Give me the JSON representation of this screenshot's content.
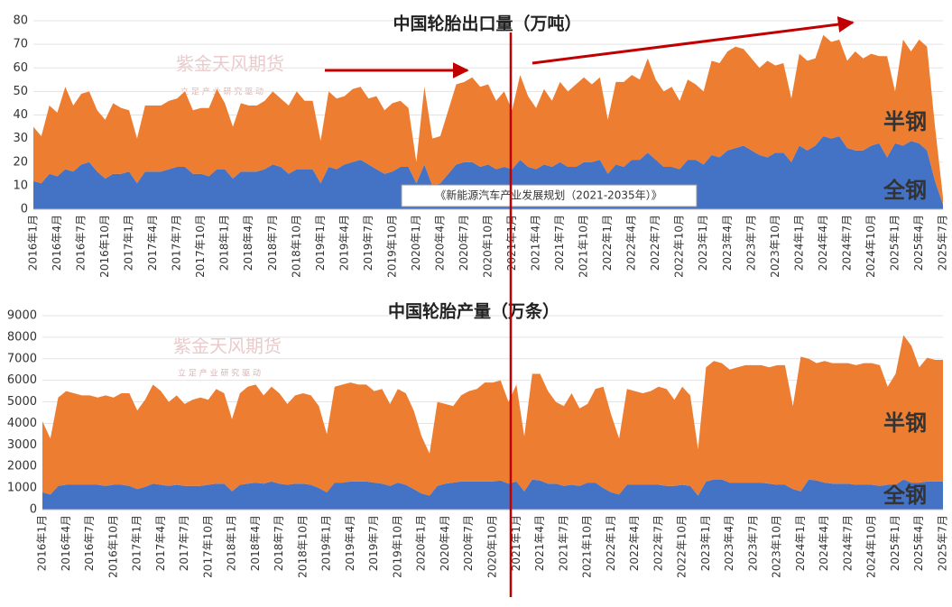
{
  "watermark": {
    "name": "紫金天风期货",
    "slogan": "立 足 产 业 研 究 驱 动"
  },
  "chart_data": [
    {
      "type": "stacked_area",
      "title": "中国轮胎出口量（万吨）",
      "annotation": "《新能源汽车产业发展规划（2021-2035年）》",
      "categories": [
        "2016年1月",
        null,
        null,
        "2016年4月",
        null,
        null,
        "2016年7月",
        null,
        null,
        "2016年10月",
        null,
        null,
        "2017年1月",
        null,
        null,
        "2017年4月",
        null,
        null,
        "2017年7月",
        null,
        null,
        "2017年10月",
        null,
        null,
        "2018年1月",
        null,
        null,
        "2018年4月",
        null,
        null,
        "2018年7月",
        null,
        null,
        "2018年10月",
        null,
        null,
        "2019年1月",
        null,
        null,
        "2019年4月",
        null,
        null,
        "2019年7月",
        null,
        null,
        "2019年10月",
        null,
        null,
        "2020年1月",
        null,
        null,
        "2020年4月",
        null,
        null,
        "2020年7月",
        null,
        null,
        "2020年10月",
        null,
        null,
        "2021年1月",
        null,
        null,
        "2021年4月",
        null,
        null,
        "2021年7月",
        null,
        null,
        "2021年10月",
        null,
        null,
        "2022年1月",
        null,
        null,
        "2022年4月",
        null,
        null,
        "2022年7月",
        null,
        null,
        "2022年10月",
        null,
        null,
        "2023年1月",
        null,
        null,
        "2023年4月",
        null,
        null,
        "2023年7月",
        null,
        null,
        "2023年10月",
        null,
        null,
        "2024年1月",
        null,
        null,
        "2024年4月",
        null,
        null,
        "2024年7月",
        null,
        null,
        "2024年10月",
        null,
        null,
        "2025年1月",
        null,
        null,
        "2025年4月",
        null,
        null,
        "2025年7月"
      ],
      "series": [
        {
          "name": "全钢",
          "color": "#4472c4",
          "values": [
            12,
            11,
            15,
            14,
            17,
            16,
            19,
            20,
            16,
            13,
            15,
            15,
            16,
            11,
            16,
            16,
            16,
            17,
            18,
            18,
            15,
            15,
            14,
            17,
            17,
            13,
            16,
            16,
            16,
            17,
            19,
            18,
            15,
            17,
            17,
            17,
            11,
            18,
            17,
            19,
            20,
            21,
            19,
            17,
            15,
            16,
            18,
            18,
            11,
            19,
            10,
            11,
            15,
            19,
            20,
            20,
            18,
            19,
            17,
            18,
            17,
            21,
            18,
            17,
            19,
            18,
            20,
            18,
            18,
            20,
            20,
            21,
            15,
            19,
            18,
            21,
            21,
            24,
            21,
            18,
            18,
            17,
            21,
            21,
            19,
            23,
            22,
            25,
            26,
            27,
            25,
            23,
            22,
            24,
            24,
            20,
            27,
            25,
            27,
            31,
            30,
            31,
            26,
            25,
            25,
            27,
            28,
            22,
            28,
            27,
            29,
            28,
            25,
            12,
            2
          ]
        },
        {
          "name": "半钢",
          "color": "#ed7d31",
          "values": [
            23,
            20,
            29,
            27,
            35,
            28,
            30,
            30,
            26,
            25,
            30,
            28,
            26,
            19,
            28,
            28,
            28,
            29,
            29,
            32,
            27,
            28,
            29,
            34,
            28,
            22,
            29,
            28,
            28,
            29,
            31,
            29,
            29,
            33,
            29,
            29,
            18,
            32,
            30,
            29,
            31,
            31,
            28,
            31,
            27,
            29,
            28,
            25,
            9,
            33,
            20,
            20,
            27,
            34,
            34,
            36,
            34,
            34,
            29,
            32,
            25,
            36,
            30,
            26,
            32,
            28,
            34,
            32,
            35,
            36,
            33,
            35,
            23,
            35,
            36,
            36,
            34,
            40,
            34,
            32,
            34,
            29,
            34,
            32,
            31,
            40,
            40,
            42,
            43,
            41,
            39,
            37,
            41,
            37,
            38,
            27,
            39,
            38,
            37,
            43,
            41,
            41,
            37,
            42,
            39,
            39,
            37,
            43,
            22,
            45,
            38,
            44,
            44,
            23,
            3
          ]
        }
      ],
      "ylim": [
        0,
        80
      ],
      "yticks": [
        0,
        10,
        20,
        30,
        40,
        50,
        60,
        70,
        80
      ],
      "grid": true
    },
    {
      "type": "stacked_area",
      "title": "中国轮胎产量（万条）",
      "categories": [
        "2016年1月",
        null,
        null,
        "2016年4月",
        null,
        null,
        "2016年7月",
        null,
        null,
        "2016年10月",
        null,
        null,
        "2017年1月",
        null,
        null,
        "2017年4月",
        null,
        null,
        "2017年7月",
        null,
        null,
        "2017年10月",
        null,
        null,
        "2018年1月",
        null,
        null,
        "2018年4月",
        null,
        null,
        "2018年7月",
        null,
        null,
        "2018年10月",
        null,
        null,
        "2019年1月",
        null,
        null,
        "2019年4月",
        null,
        null,
        "2019年7月",
        null,
        null,
        "2019年10月",
        null,
        null,
        "2020年1月",
        null,
        null,
        "2020年4月",
        null,
        null,
        "2020年7月",
        null,
        null,
        "2020年10月",
        null,
        null,
        "2021年1月",
        null,
        null,
        "2021年4月",
        null,
        null,
        "2021年7月",
        null,
        null,
        "2021年10月",
        null,
        null,
        "2022年1月",
        null,
        null,
        "2022年4月",
        null,
        null,
        "2022年7月",
        null,
        null,
        "2022年10月",
        null,
        null,
        "2023年1月",
        null,
        null,
        "2023年4月",
        null,
        null,
        "2023年7月",
        null,
        null,
        "2023年10月",
        null,
        null,
        "2024年1月",
        null,
        null,
        "2024年4月",
        null,
        null,
        "2024年7月",
        null,
        null,
        "2024年10月",
        null,
        null,
        "2025年1月",
        null,
        null,
        "2025年4月",
        null,
        null,
        "2025年7月"
      ],
      "series": [
        {
          "name": "全钢",
          "color": "#4472c4",
          "values": [
            800,
            700,
            1100,
            1150,
            1150,
            1150,
            1150,
            1150,
            1100,
            1150,
            1150,
            1100,
            950,
            1050,
            1200,
            1150,
            1100,
            1150,
            1100,
            1100,
            1100,
            1150,
            1200,
            1200,
            850,
            1150,
            1200,
            1250,
            1200,
            1300,
            1200,
            1150,
            1200,
            1200,
            1150,
            1000,
            800,
            1250,
            1250,
            1300,
            1300,
            1300,
            1250,
            1200,
            1100,
            1250,
            1150,
            950,
            750,
            650,
            1100,
            1200,
            1250,
            1300,
            1300,
            1300,
            1300,
            1300,
            1350,
            1200,
            1300,
            850,
            1400,
            1350,
            1200,
            1200,
            1100,
            1150,
            1100,
            1250,
            1250,
            1000,
            800,
            700,
            1150,
            1150,
            1150,
            1150,
            1150,
            1100,
            1100,
            1150,
            1100,
            650,
            1300,
            1400,
            1400,
            1250,
            1250,
            1250,
            1250,
            1250,
            1200,
            1150,
            1150,
            950,
            850,
            1400,
            1350,
            1250,
            1200,
            1200,
            1200,
            1150,
            1150,
            1150,
            1100,
            1150,
            1150,
            1400,
            1250,
            1250,
            1300,
            1300,
            1300
          ]
        },
        {
          "name": "半钢",
          "color": "#ed7d31",
          "values": [
            3300,
            2600,
            4100,
            4350,
            4250,
            4150,
            4150,
            4050,
            4200,
            4050,
            4250,
            4300,
            3650,
            4050,
            4600,
            4350,
            3900,
            4150,
            3800,
            4000,
            4100,
            3950,
            4400,
            4200,
            3350,
            4250,
            4500,
            4550,
            4100,
            4400,
            4200,
            3750,
            4100,
            4200,
            4150,
            3800,
            2700,
            4450,
            4550,
            4600,
            4500,
            4500,
            4250,
            4400,
            3800,
            4350,
            4250,
            3650,
            2650,
            1950,
            3900,
            3700,
            3550,
            4000,
            4200,
            4300,
            4600,
            4600,
            4650,
            3800,
            4500,
            2550,
            4900,
            4950,
            4300,
            3800,
            3700,
            4250,
            3600,
            3650,
            4350,
            4700,
            3600,
            2600,
            4450,
            4350,
            4250,
            4350,
            4550,
            4500,
            4000,
            4550,
            4200,
            2150,
            5300,
            5500,
            5400,
            5250,
            5350,
            5450,
            5450,
            5450,
            5400,
            5550,
            5550,
            3850,
            6250,
            5600,
            5450,
            5650,
            5600,
            5600,
            5600,
            5550,
            5650,
            5650,
            5600,
            4550,
            5150,
            6700,
            6350,
            5350,
            5750,
            5650,
            5650
          ]
        }
      ],
      "ylim": [
        0,
        9000
      ],
      "yticks": [
        0,
        1000,
        2000,
        3000,
        4000,
        5000,
        6000,
        7000,
        8000,
        9000
      ],
      "grid": true
    }
  ]
}
